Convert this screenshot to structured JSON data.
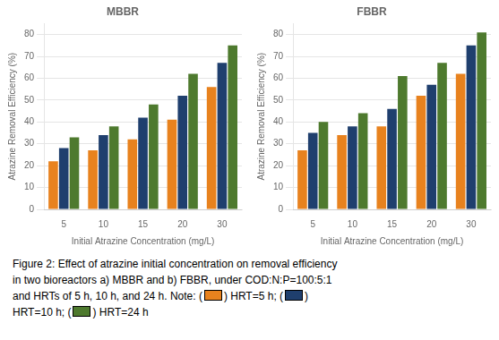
{
  "chart_data": [
    {
      "type": "bar",
      "title": "MBBR",
      "xlabel": "Initial Atrazine Concentration (mg/L)",
      "ylabel": "Atrazine Removal Efficiency (%)",
      "categories": [
        5,
        10,
        15,
        20,
        30
      ],
      "series": [
        {
          "color": "#E8821E",
          "values": [
            22,
            27,
            32,
            41,
            56
          ]
        },
        {
          "color": "#1F3F6E",
          "values": [
            28,
            34,
            42,
            52,
            67
          ]
        },
        {
          "color": "#4E7A2E",
          "values": [
            33,
            38,
            48,
            62,
            75
          ]
        }
      ],
      "ylim": [
        0,
        85
      ],
      "yticks": [
        0,
        10,
        20,
        30,
        40,
        50,
        60,
        70,
        80
      ],
      "grid": "y",
      "annotations": [
        [
          "Figure 2: Effect of atrazine initial concentration on removal efficiency"
        ],
        [
          "in two bioreactors a) MBBR and b) FBBR, under COD:N:P=100:5:1"
        ],
        [
          "and HRTs of 5 h, 10 h, and 24 h. Note: (",
          ") HRT=5 h; (",
          ")"
        ],
        [
          "HRT=10 h; (",
          ") HRT=24 h"
        ]
      ]
    },
    {
      "type": "bar",
      "title": "FBBR",
      "xlabel": "Initial Atrazine Concentration (mg/L)",
      "ylabel": "Atrazine Removal Efficiency (%)",
      "categories": [
        5,
        10,
        15,
        20,
        30
      ],
      "series": [
        {
          "color": "#E8821E",
          "values": [
            27,
            34,
            38,
            52,
            62
          ]
        },
        {
          "color": "#1F3F6E",
          "values": [
            35,
            38,
            46,
            57,
            75
          ]
        },
        {
          "color": "#4E7A2E",
          "values": [
            40,
            44,
            61,
            67,
            81
          ]
        }
      ],
      "ylim": [
        0,
        85
      ],
      "yticks": [
        0,
        10,
        20,
        30,
        40,
        50,
        60,
        70,
        80
      ],
      "grid": "y"
    }
  ]
}
